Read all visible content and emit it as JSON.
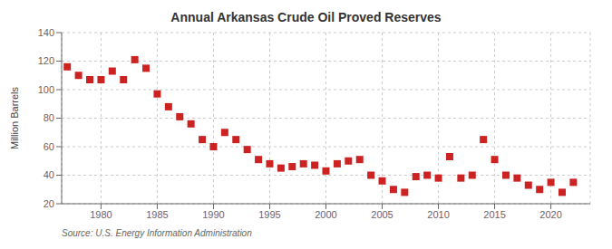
{
  "chart_data": {
    "type": "scatter",
    "title": "Annual Arkansas Crude Oil Proved Reserves",
    "y_label": "Million Barrels",
    "annotations": [
      "Source: U.S. Energy Information Administration"
    ],
    "x": [
      1977,
      1978,
      1979,
      1980,
      1981,
      1982,
      1983,
      1984,
      1985,
      1986,
      1987,
      1988,
      1989,
      1990,
      1991,
      1992,
      1993,
      1994,
      1995,
      1996,
      1997,
      1998,
      1999,
      2000,
      2001,
      2002,
      2003,
      2004,
      2005,
      2006,
      2007,
      2008,
      2009,
      2010,
      2011,
      2012,
      2013,
      2014,
      2015,
      2016,
      2017,
      2018,
      2019,
      2020,
      2021,
      2022
    ],
    "values": [
      116,
      110,
      107,
      107,
      113,
      107,
      121,
      115,
      97,
      88,
      81,
      76,
      65,
      60,
      70,
      65,
      58,
      51,
      48,
      45,
      46,
      48,
      47,
      43,
      48,
      50,
      51,
      40,
      36,
      30,
      28,
      39,
      40,
      38,
      53,
      38,
      40,
      65,
      51,
      40,
      38,
      33,
      30,
      35,
      28,
      35
    ],
    "color": "#cc2222",
    "marker": "square",
    "xlim": [
      1976.5,
      2023.5
    ],
    "ylim": [
      20,
      140
    ],
    "xticks": [
      1980,
      1985,
      1990,
      1995,
      2000,
      2005,
      2010,
      2015,
      2020
    ],
    "yticks": [
      20,
      40,
      60,
      80,
      100,
      120,
      140
    ],
    "grid": true
  }
}
